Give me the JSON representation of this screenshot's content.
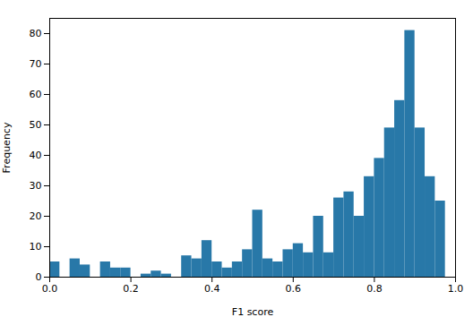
{
  "chart_data": {
    "type": "histogram",
    "xlabel": "F1 score",
    "ylabel": "Frequency",
    "bins": [
      0.0,
      0.025,
      0.05,
      0.075,
      0.1,
      0.125,
      0.15,
      0.175,
      0.2,
      0.225,
      0.25,
      0.275,
      0.3,
      0.325,
      0.35,
      0.375,
      0.4,
      0.425,
      0.45,
      0.475,
      0.5,
      0.525,
      0.55,
      0.575,
      0.6,
      0.625,
      0.65,
      0.675,
      0.7,
      0.725,
      0.75,
      0.775,
      0.8,
      0.825,
      0.85,
      0.875,
      0.9,
      0.925,
      0.95,
      0.975,
      1.0
    ],
    "values": [
      5,
      0,
      6,
      4,
      0,
      5,
      3,
      3,
      0,
      1,
      2,
      1,
      0,
      7,
      6,
      12,
      5,
      3,
      5,
      9,
      22,
      6,
      5,
      9,
      11,
      8,
      20,
      8,
      26,
      28,
      20,
      33,
      39,
      49,
      58,
      81,
      49,
      33,
      25,
      0
    ],
    "color": "#2878a8",
    "xlim": [
      0.0,
      1.0
    ],
    "ylim": [
      0,
      85
    ],
    "xticks": [
      {
        "value": 0.0,
        "label": "0.0"
      },
      0.2,
      0.4,
      0.6,
      0.8,
      {
        "value": 1.0,
        "label": "1.0"
      }
    ],
    "yticks": [
      0,
      10,
      20,
      30,
      40,
      50,
      60,
      70,
      80
    ],
    "grid": false
  }
}
